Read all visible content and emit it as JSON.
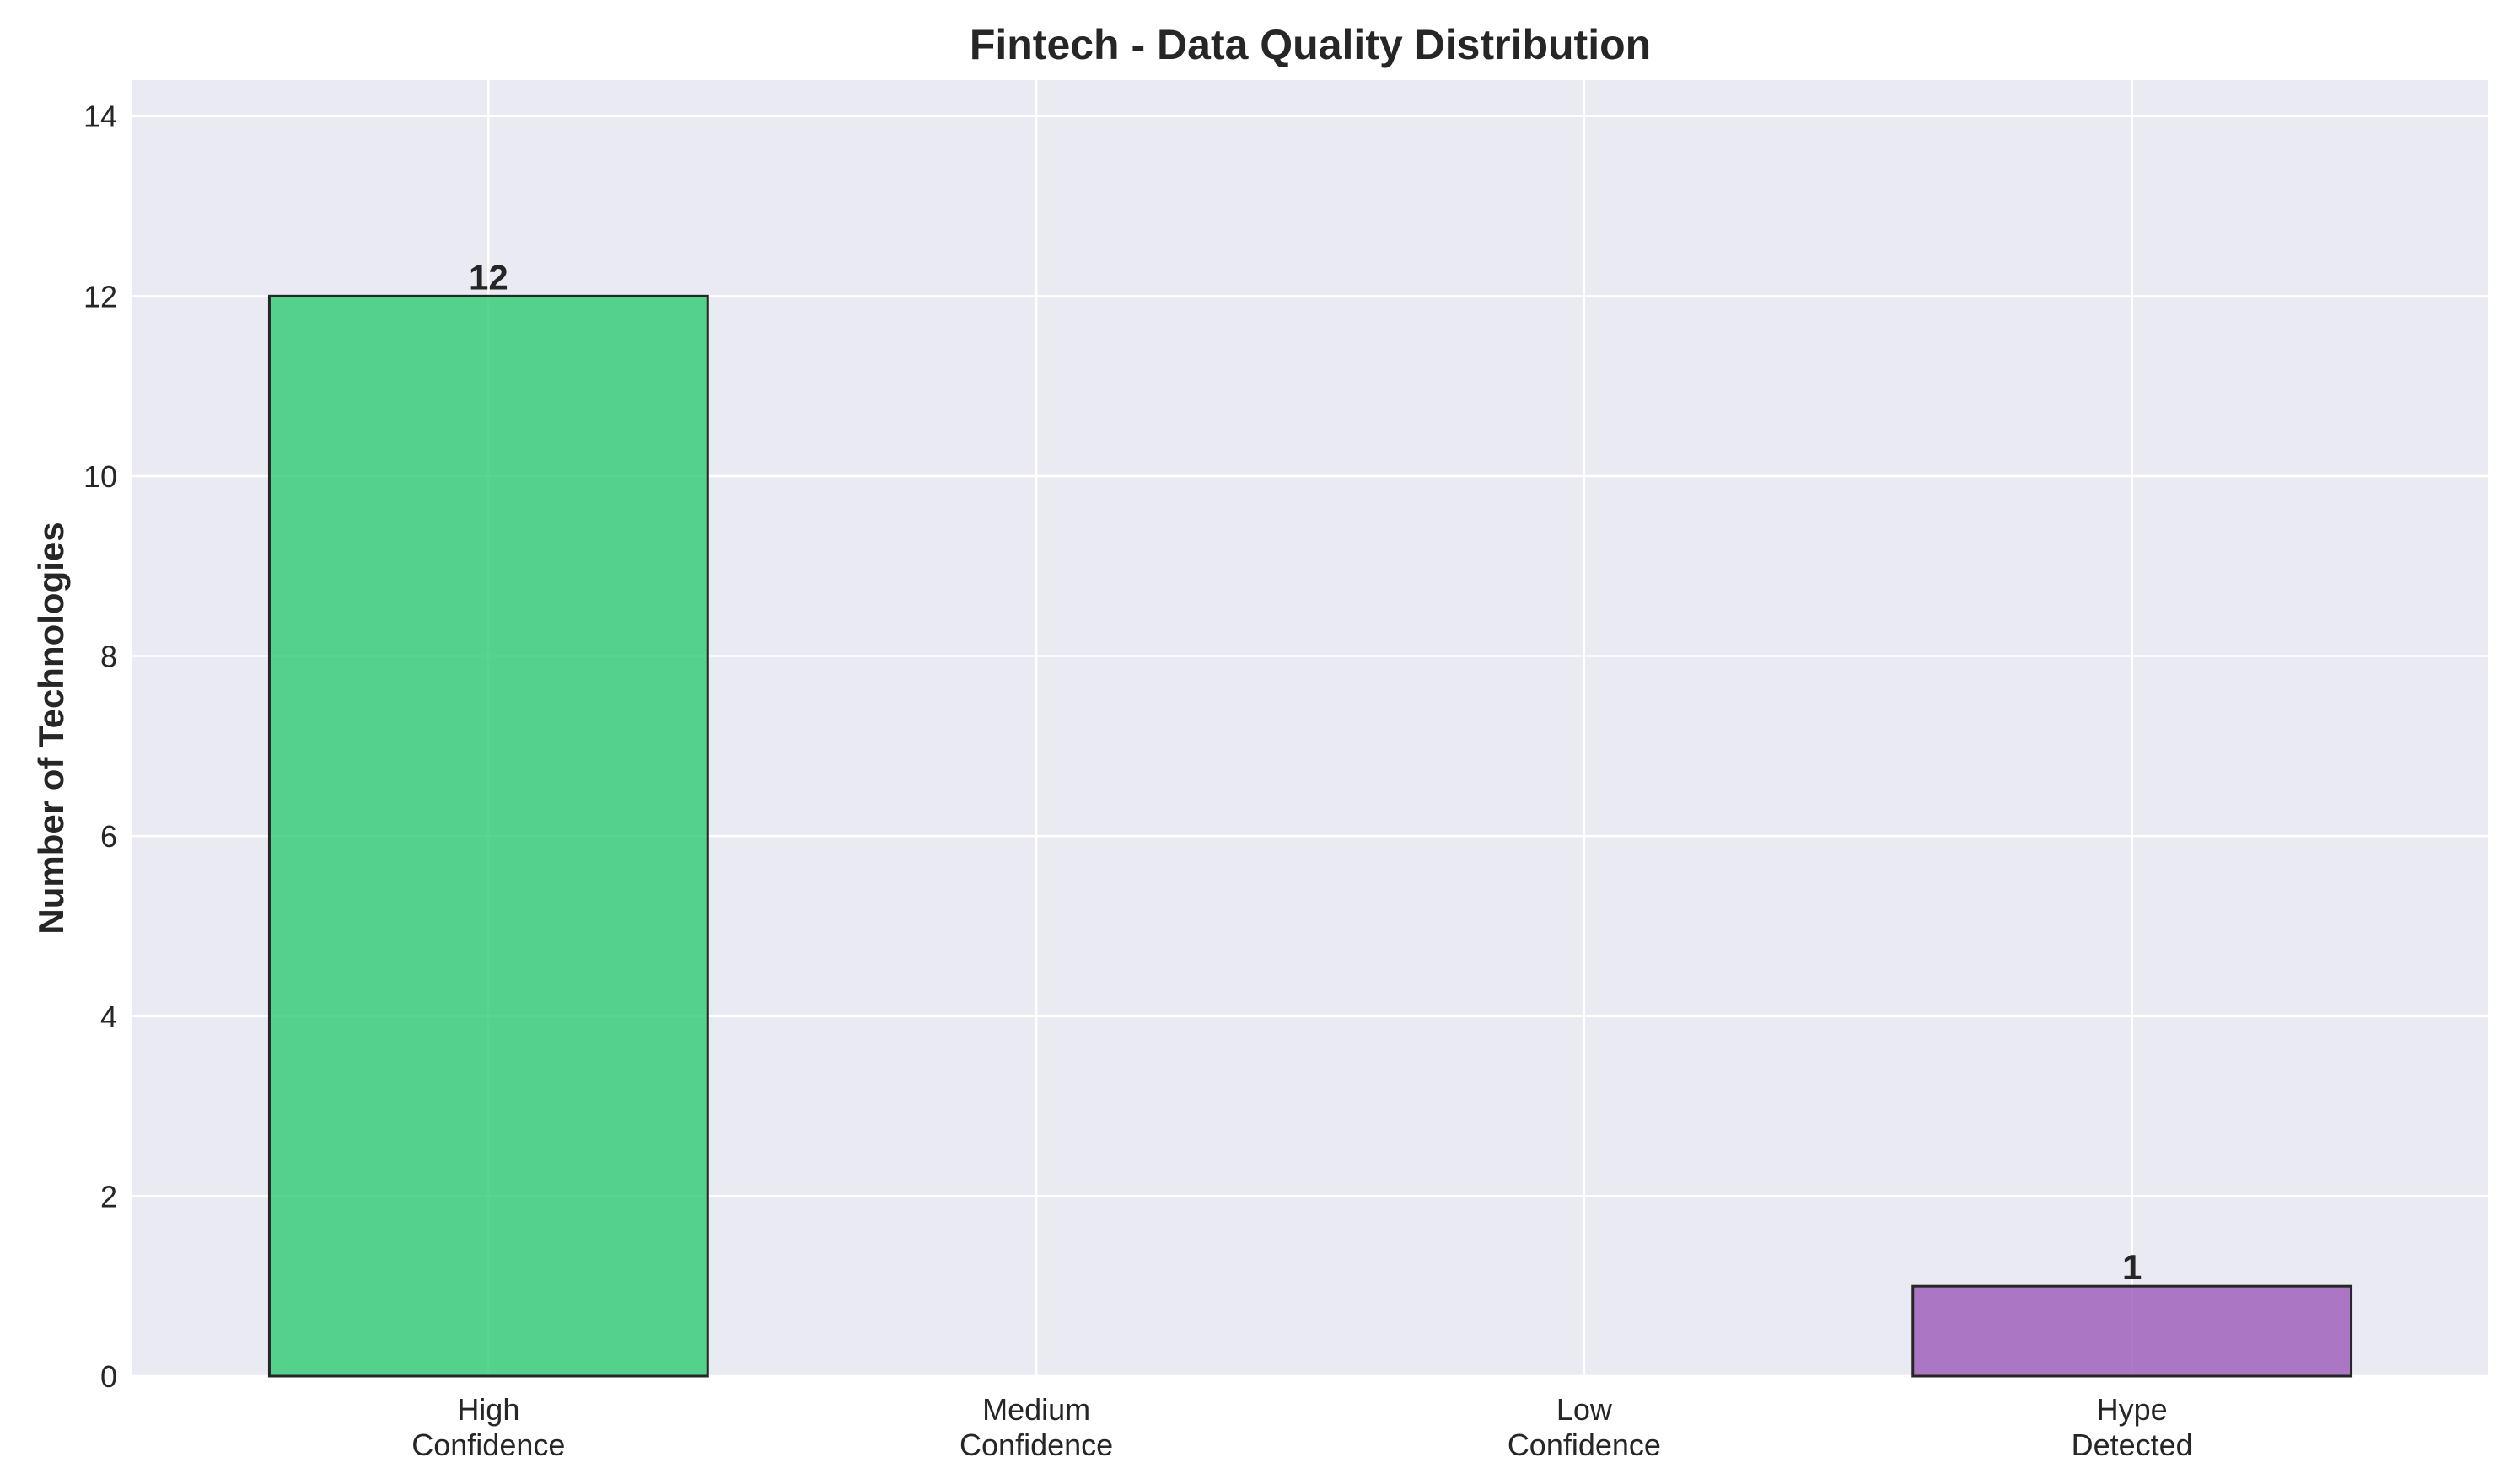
{
  "chart_data": {
    "type": "bar",
    "title": "Fintech - Data Quality Distribution",
    "xlabel": "",
    "ylabel": "Number of Technologies",
    "categories": [
      [
        "High",
        "Confidence"
      ],
      [
        "Medium",
        "Confidence"
      ],
      [
        "Low",
        "Confidence"
      ],
      [
        "Hype",
        "Detected"
      ]
    ],
    "values": [
      12,
      0,
      0,
      1
    ],
    "value_labels": [
      "12",
      "",
      "",
      "1"
    ],
    "colors": [
      "#2ecc71",
      "#f39c12",
      "#e74c3c",
      "#9b59b6"
    ],
    "ylim": [
      0,
      14.4
    ],
    "yticks": [
      0,
      2,
      4,
      6,
      8,
      10,
      12,
      14
    ],
    "grid": true,
    "legend": "none",
    "background_color": "#eaeaf2",
    "edge_color": "#262626"
  }
}
